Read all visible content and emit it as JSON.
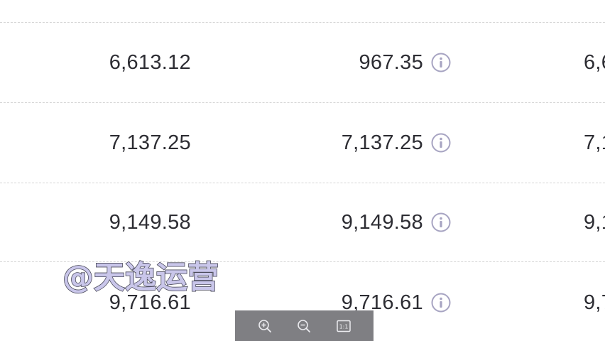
{
  "table": {
    "rows": [
      {
        "col1": "6,613.12",
        "col2": "967.35",
        "col3": "6,6"
      },
      {
        "col1": "7,137.25",
        "col2": "7,137.25",
        "col3": "7,1"
      },
      {
        "col1": "9,149.58",
        "col2": "9,149.58",
        "col3": "9,1"
      },
      {
        "col1": "9,716.61",
        "col2": "9,716.61",
        "col3": "9,7"
      }
    ]
  },
  "watermark": {
    "text": "@天逸运营"
  },
  "viewer_toolbar": {
    "buttons": [
      "zoom-in-icon",
      "zoom-out-icon",
      "actual-size-icon"
    ],
    "actual_size_label": "1:1"
  },
  "colors": {
    "text": "#2d2d33",
    "info_icon": "#a7a4c2",
    "toolbar_bg": "#7f7f83",
    "watermark_fill": "#c9c6ea"
  }
}
